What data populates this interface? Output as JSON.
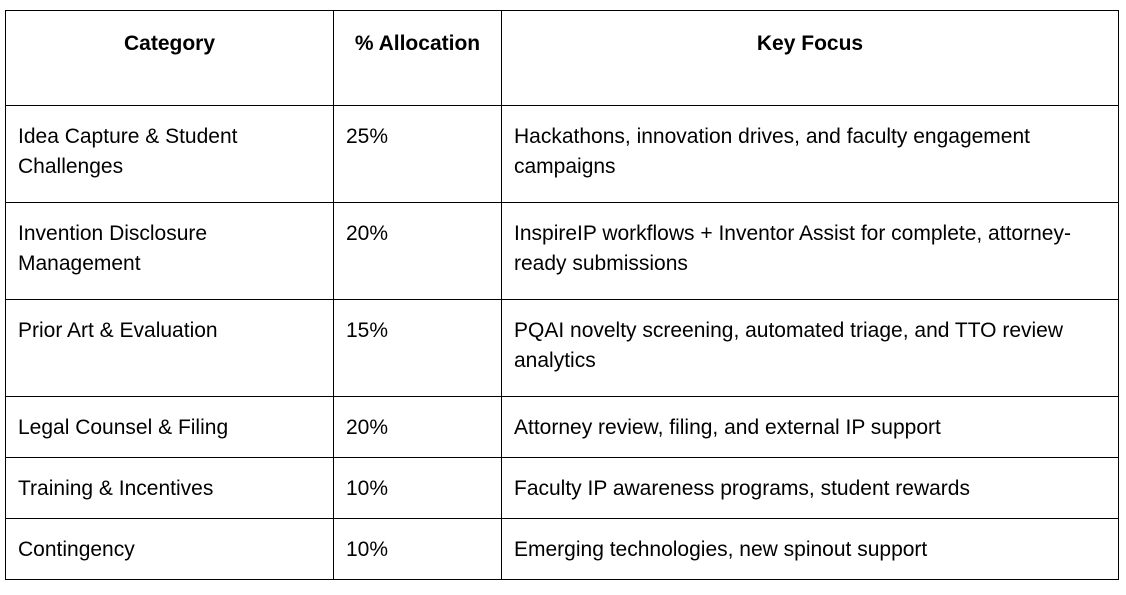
{
  "table": {
    "header": [
      "Category",
      "% Allocation",
      "Key Focus"
    ],
    "rows": [
      [
        "Idea Capture & Student Challenges",
        "25%",
        "Hackathons, innovation drives, and faculty engagement campaigns"
      ],
      [
        "Invention Disclosure Management",
        "20%",
        "InspireIP workflows + Inventor Assist for complete, attorney-ready submissions"
      ],
      [
        "Prior Art & Evaluation",
        "15%",
        "PQAI novelty screening, automated triage, and TTO review analytics"
      ],
      [
        "Legal Counsel & Filing",
        "20%",
        "Attorney review, filing, and external IP support"
      ],
      [
        "Training & Incentives",
        "10%",
        "Faculty IP awareness programs, student rewards"
      ],
      [
        "Contingency",
        "10%",
        "Emerging technologies, new spinout support"
      ]
    ]
  }
}
